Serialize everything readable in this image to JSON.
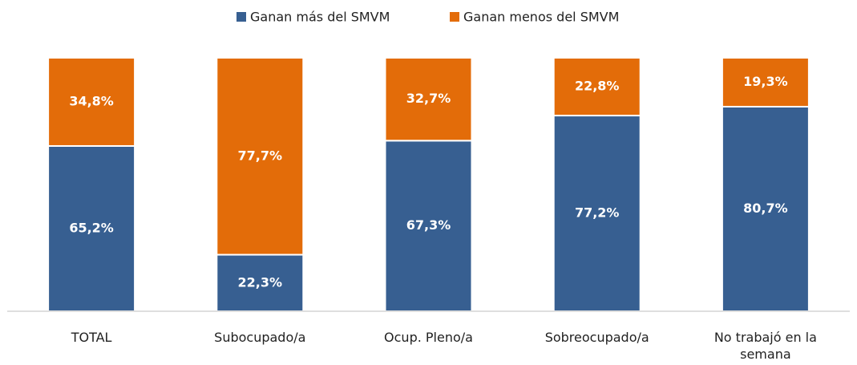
{
  "chart_data": {
    "type": "stacked_bar",
    "categories": [
      "TOTAL",
      "Subocupado/a",
      "Ocup. Pleno/a",
      "Sobreocupado/a",
      "No trabajó en la semana"
    ],
    "series": [
      {
        "name": "Ganan más del SMVM",
        "color": "#375f91",
        "values": [
          65.2,
          22.3,
          67.3,
          77.2,
          80.7
        ],
        "value_labels": [
          "65,2%",
          "22,3%",
          "67,3%",
          "77,2%",
          "80,7%"
        ]
      },
      {
        "name": "Ganan menos del SMVM",
        "color": "#e36c09",
        "values": [
          34.8,
          77.7,
          32.7,
          22.8,
          19.3
        ],
        "value_labels": [
          "34,8%",
          "77,7%",
          "32,7%",
          "22,8%",
          "19,3%"
        ]
      }
    ],
    "ylim": [
      0,
      100
    ],
    "legend": "top"
  }
}
